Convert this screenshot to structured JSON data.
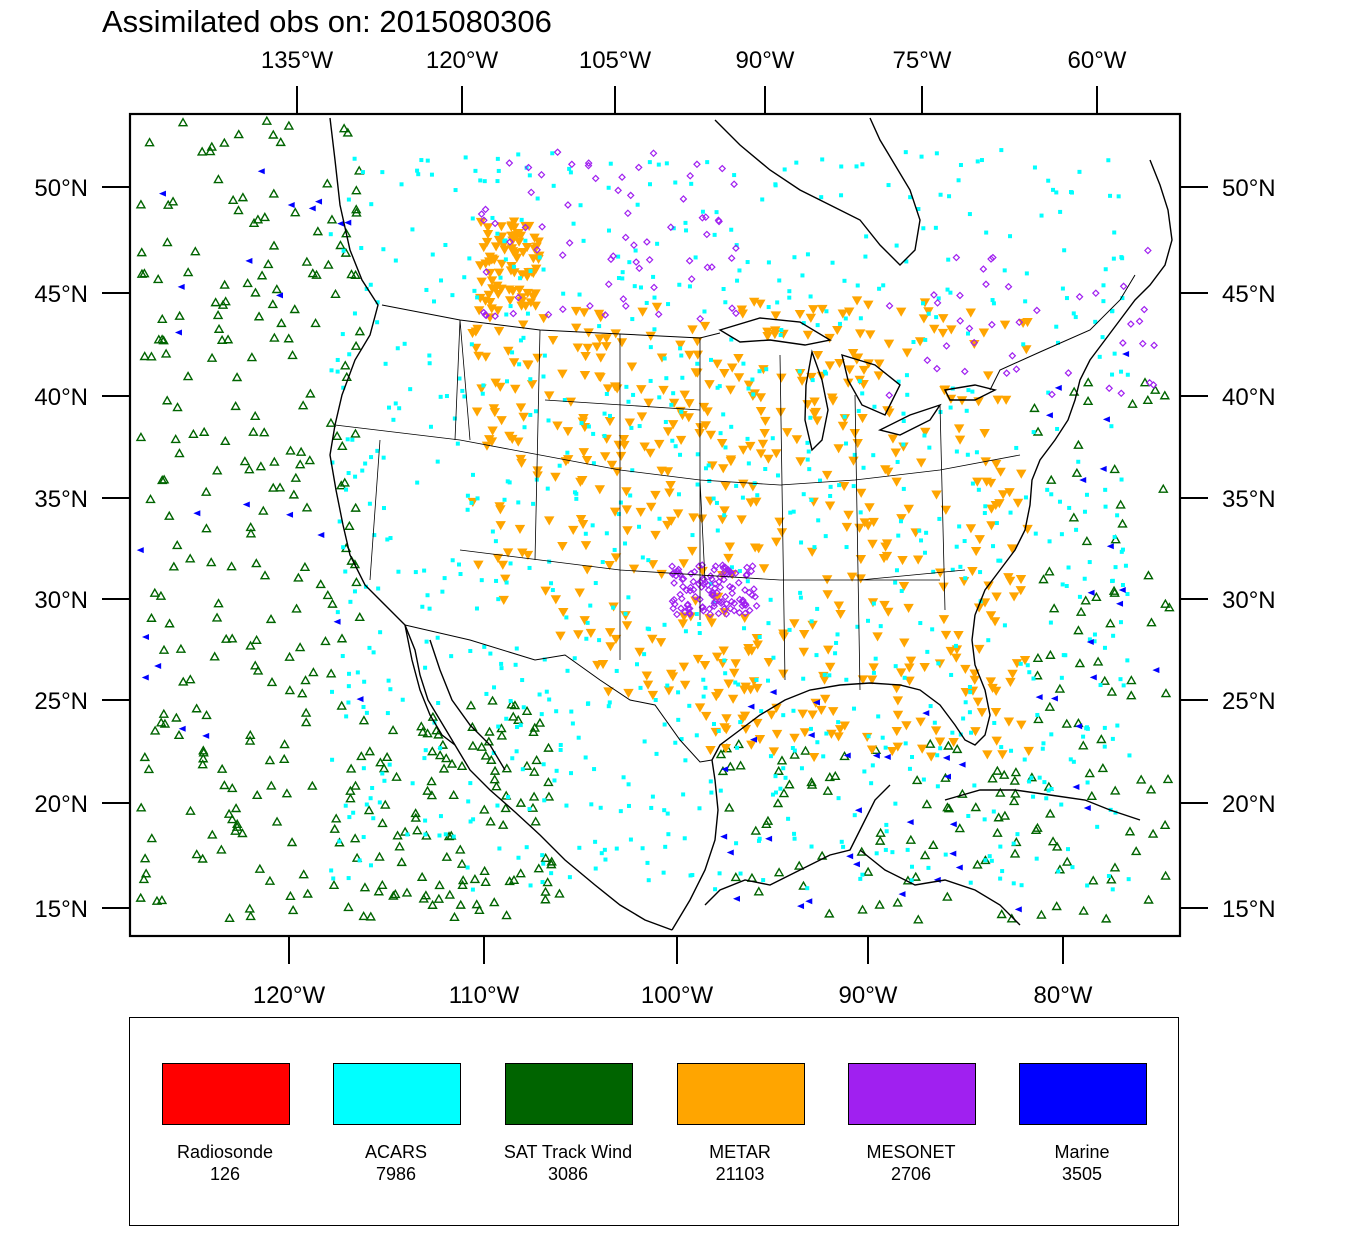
{
  "title": "Assimilated obs on: 2015080306",
  "axes": {
    "top_lon_labels": [
      "135°W",
      "120°W",
      "105°W",
      "90°W",
      "75°W",
      "60°W"
    ],
    "bottom_lon_labels": [
      "120°W",
      "110°W",
      "100°W",
      "90°W",
      "80°W"
    ],
    "lat_labels": [
      "50°N",
      "45°N",
      "40°N",
      "35°N",
      "30°N",
      "25°N",
      "20°N",
      "15°N"
    ]
  },
  "legend": [
    {
      "name": "Radiosonde",
      "count": "126",
      "color": "#ff0000"
    },
    {
      "name": "ACARS",
      "count": "7986",
      "color": "#00ffff"
    },
    {
      "name": "SAT Track Wind",
      "count": "3086",
      "color": "#006400"
    },
    {
      "name": "METAR",
      "count": "21103",
      "color": "#ffa500"
    },
    {
      "name": "MESONET",
      "count": "2706",
      "color": "#a020f0"
    },
    {
      "name": "Marine",
      "count": "3505",
      "color": "#0000ff"
    }
  ]
}
